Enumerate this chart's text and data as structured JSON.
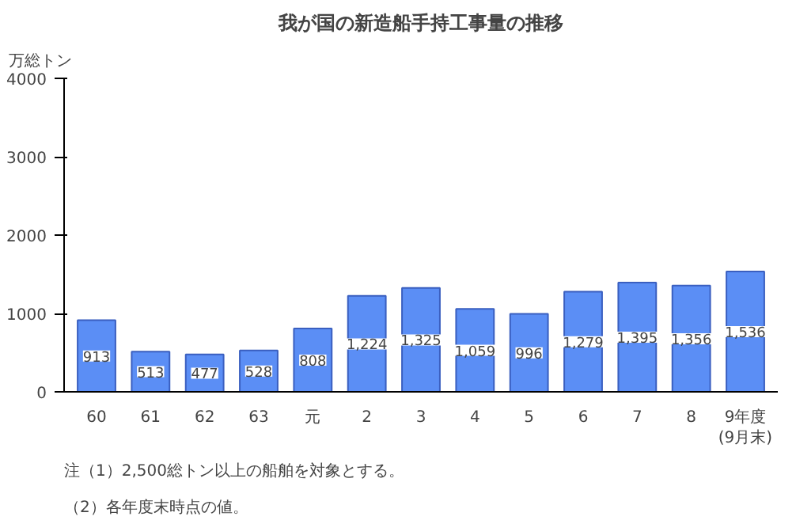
{
  "chart_data": {
    "type": "bar",
    "title": "我が国の新造船手持工事量の推移",
    "ylabel": "万総トン",
    "categories": [
      "60",
      "61",
      "62",
      "63",
      "元",
      "2",
      "3",
      "4",
      "5",
      "6",
      "7",
      "8",
      "9年度\n(9月末)"
    ],
    "series": [
      {
        "color": "#5b8ef5",
        "values": [
          913,
          513,
          477,
          528,
          808,
          1224,
          1325,
          1059,
          996,
          1279,
          1395,
          1356,
          1536
        ],
        "value_labels": [
          "913",
          "513",
          "477",
          "528",
          "808",
          "1,224",
          "1,325",
          "1,059",
          "996",
          "1,279",
          "1,395",
          "1,356",
          "1,536"
        ]
      }
    ],
    "ylim": [
      0,
      4000
    ],
    "yticks": [
      0,
      1000,
      2000,
      3000,
      4000
    ],
    "grid": false,
    "annotations": [
      "注（1）2,500総トン以上の船舶を対象とする。",
      "（2）各年度末時点の値。"
    ]
  }
}
